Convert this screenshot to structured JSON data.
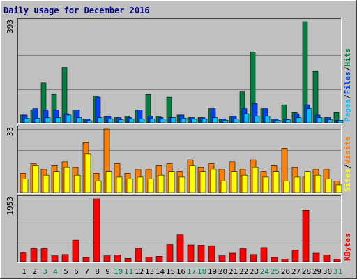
{
  "chart_data": {
    "type": "bar",
    "title": "Daily usage for December 2016",
    "categories": [
      "1",
      "2",
      "3",
      "4",
      "5",
      "6",
      "7",
      "8",
      "9",
      "10",
      "11",
      "12",
      "13",
      "14",
      "15",
      "16",
      "17",
      "18",
      "19",
      "20",
      "21",
      "22",
      "23",
      "24",
      "25",
      "26",
      "27",
      "28",
      "29",
      "30",
      "31"
    ],
    "weekend_days": [
      "3",
      "4",
      "10",
      "11",
      "17",
      "18",
      "24",
      "25",
      "31"
    ],
    "panels": [
      {
        "id": "hits",
        "ymax_label": "393",
        "ymax": 393,
        "legend": [
          "Pages",
          "/",
          "Files",
          "/",
          "Hits"
        ],
        "series": [
          {
            "name": "Hits",
            "color": "#008040",
            "values": [
              30,
              50,
              155,
              110,
              215,
              50,
              15,
              105,
              25,
              20,
              25,
              50,
              110,
              25,
              100,
              30,
              20,
              20,
              55,
              15,
              25,
              120,
              275,
              55,
              15,
              70,
              40,
              393,
              200,
              20,
              40
            ]
          },
          {
            "name": "Files",
            "color": "#0040ff",
            "values": [
              30,
              55,
              50,
              50,
              35,
              50,
              15,
              100,
              25,
              20,
              20,
              50,
              25,
              20,
              20,
              30,
              20,
              20,
              55,
              15,
              25,
              55,
              75,
              55,
              15,
              15,
              35,
              70,
              30,
              20,
              10
            ]
          },
          {
            "name": "Pages",
            "color": "#00c0ff",
            "values": [
              18,
              18,
              20,
              20,
              30,
              20,
              8,
              20,
              15,
              12,
              15,
              15,
              15,
              15,
              20,
              18,
              15,
              15,
              20,
              10,
              15,
              35,
              25,
              25,
              10,
              12,
              20,
              55,
              20,
              12,
              10
            ]
          }
        ]
      },
      {
        "id": "visits",
        "ymax_label": "33",
        "ymax": 33,
        "legend": [
          "Sites",
          "/",
          "Visits"
        ],
        "series": [
          {
            "name": "Visits",
            "color": "#ff8000",
            "values": [
              10,
              15,
              12,
              14,
              16,
              13,
              26,
              10,
              33,
              15,
              10,
              12,
              12,
              14,
              15,
              11,
              17,
              13,
              15,
              12,
              16,
              12,
              17,
              11,
              14,
              23,
              13,
              8,
              12,
              12,
              6
            ]
          },
          {
            "name": "Sites",
            "color": "#ffff00",
            "values": [
              7,
              14,
              9,
              11,
              13,
              9,
              20,
              6,
              11,
              8,
              7,
              8,
              7,
              9,
              11,
              8,
              14,
              11,
              12,
              6,
              11,
              9,
              13,
              8,
              11,
              6,
              8,
              11,
              9,
              7,
              4
            ]
          }
        ]
      },
      {
        "id": "kbytes",
        "ymax_label": "1953",
        "ymax": 1953,
        "legend": [
          "KBytes"
        ],
        "series": [
          {
            "name": "KBytes",
            "color": "#ff0000",
            "values": [
              270,
              400,
              400,
              180,
              220,
              670,
              130,
              1953,
              180,
              210,
              100,
              400,
              140,
              165,
              530,
              830,
              520,
              510,
              495,
              180,
              260,
              400,
              220,
              435,
              130,
              80,
              350,
              1600,
              260,
              210,
              70
            ]
          }
        ]
      }
    ],
    "grid": true
  }
}
